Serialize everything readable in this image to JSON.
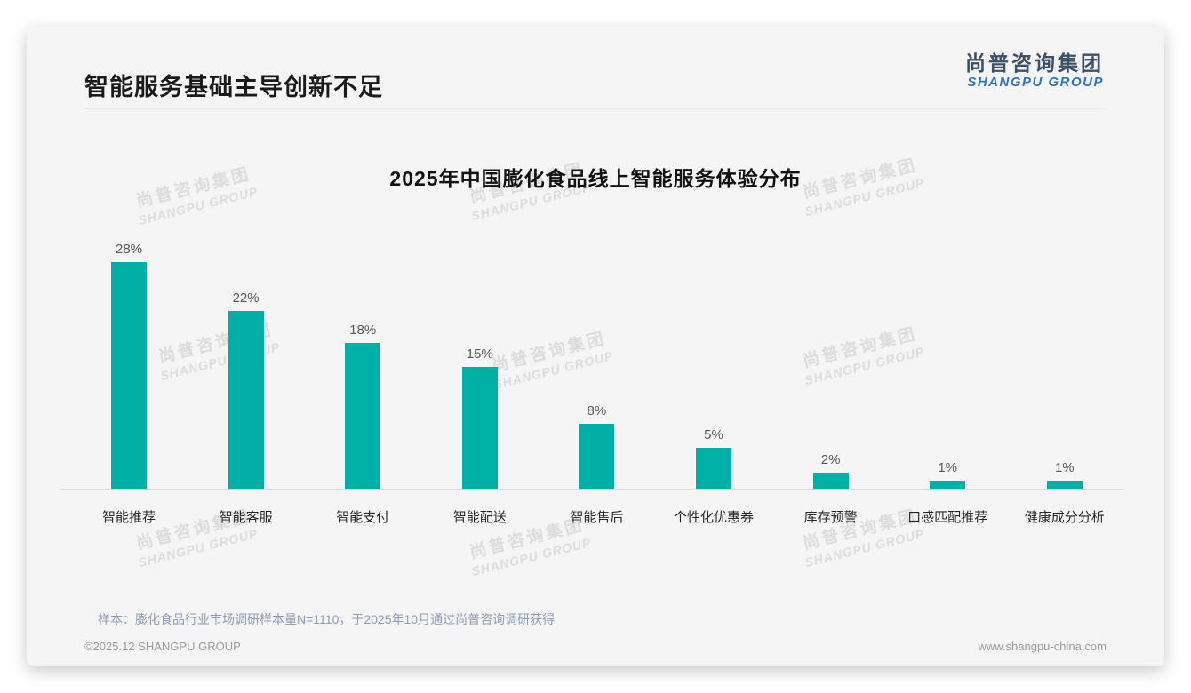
{
  "page": {
    "title": "智能服务基础主导创新不足",
    "logo": {
      "cn": "尚普咨询集团",
      "en": "SHANGPU GROUP"
    },
    "watermark": {
      "line1": "尚普咨询集团",
      "line2": "SHANGPU GROUP"
    },
    "note": "样本：膨化食品行业市场调研样本量N=1110，于2025年10月通过尚普咨询调研获得",
    "footer": {
      "left": "©2025.12 SHANGPU GROUP",
      "right": "www.shangpu-china.com"
    }
  },
  "chart_data": {
    "type": "bar",
    "title": "2025年中国膨化食品线上智能服务体验分布",
    "categories": [
      "智能推荐",
      "智能客服",
      "智能支付",
      "智能配送",
      "智能售后",
      "个性化优惠券",
      "库存预警",
      "口感匹配推荐",
      "健康成分分析"
    ],
    "values": [
      28,
      22,
      18,
      15,
      8,
      5,
      2,
      1,
      1
    ],
    "data_labels": [
      "28%",
      "22%",
      "18%",
      "15%",
      "8%",
      "5%",
      "2%",
      "1%",
      "1%"
    ],
    "unit": "%",
    "bar_color": "#00b0a6",
    "xlabel": "",
    "ylabel": "",
    "ylim": [
      0,
      30
    ],
    "grid": false,
    "legend": "none",
    "sorted": "descending"
  }
}
